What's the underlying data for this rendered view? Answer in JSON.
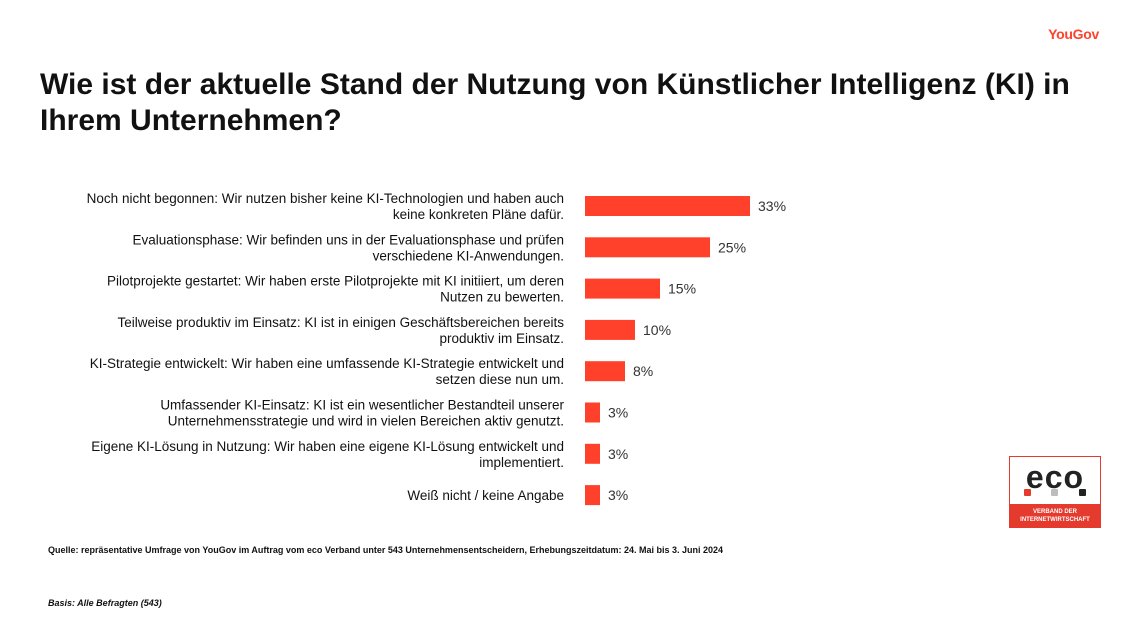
{
  "brand": "YouGov",
  "title": "Wie ist der aktuelle Stand der Nutzung von Künstlicher Intelligenz (KI) in Ihrem Unternehmen?",
  "chart_data": {
    "type": "bar",
    "orientation": "horizontal",
    "categories": [
      [
        "Noch nicht begonnen: Wir nutzen bisher keine KI-Technologien und haben auch",
        "keine konkreten Pläne dafür."
      ],
      [
        "Evaluationsphase: Wir befinden uns in der Evaluationsphase und prüfen",
        "verschiedene KI-Anwendungen."
      ],
      [
        "Pilotprojekte gestartet: Wir haben erste Pilotprojekte mit KI initiiert, um deren",
        "Nutzen zu bewerten."
      ],
      [
        "Teilweise produktiv im Einsatz: KI ist in einigen Geschäftsbereichen bereits",
        "produktiv im Einsatz."
      ],
      [
        "KI-Strategie entwickelt: Wir haben eine umfassende KI-Strategie entwickelt und",
        "setzen diese nun um."
      ],
      [
        "Umfassender KI-Einsatz: KI ist ein wesentlicher Bestandteil unserer",
        "Unternehmensstrategie und wird in vielen Bereichen aktiv genutzt."
      ],
      [
        "Eigene KI-Lösung in Nutzung: Wir haben eine eigene KI-Lösung entwickelt und",
        "implementiert."
      ],
      [
        "Weiß nicht / keine Angabe"
      ]
    ],
    "values": [
      33,
      25,
      15,
      10,
      8,
      3,
      3,
      3
    ],
    "value_labels": [
      "33%",
      "25%",
      "15%",
      "10%",
      "8%",
      "3%",
      "3%",
      "3%"
    ],
    "bar_color": "#ff412c",
    "grid": false,
    "legend": "none"
  },
  "logo": {
    "word": "eco",
    "tagline": [
      "VERBAND DER",
      "INTERNETWIRTSCHAFT"
    ],
    "colors": {
      "red": "#e53a2e",
      "gray": "#bdbdbd",
      "dark": "#222222"
    }
  },
  "footnote": {
    "source": "Quelle: repräsentative Umfrage von YouGov im Auftrag vom eco Verband unter 543 Unternehmensentscheidern, Erhebungszeitdatum: 24. Mai bis 3. Juni 2024",
    "basis": "Basis: Alle Befragten (543)"
  }
}
